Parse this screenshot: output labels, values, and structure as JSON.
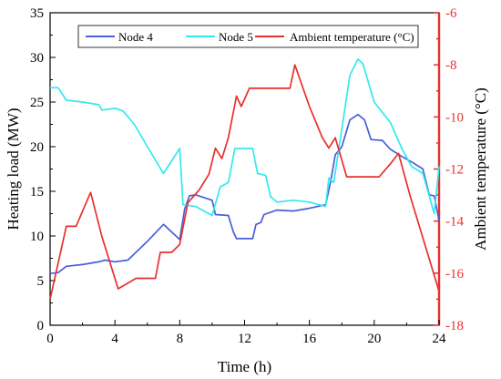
{
  "chart_data": {
    "type": "line",
    "xlabel": "Time (h)",
    "ylabel_left": "Heating load (MW)",
    "ylabel_right": "Ambient temperature (°C)",
    "xlim": [
      0,
      24
    ],
    "ylim_left": [
      0,
      35
    ],
    "ylim_right": [
      -18,
      -6
    ],
    "x_ticks": [
      0,
      4,
      8,
      12,
      16,
      20,
      24
    ],
    "y_left_ticks": [
      0,
      5,
      10,
      15,
      20,
      25,
      30,
      35
    ],
    "y_right_ticks": [
      -18,
      -16,
      -14,
      -12,
      -10,
      -8,
      -6
    ],
    "grid": false,
    "legend_position": "top",
    "colors": {
      "node4": "#4a5fd8",
      "node5": "#33e8f0",
      "ambient": "#e8302e",
      "right_axis": "#e8302e"
    },
    "series": [
      {
        "name": "Node 4",
        "axis": "left",
        "points": [
          [
            0,
            5.8
          ],
          [
            0.5,
            5.9
          ],
          [
            1,
            6.6
          ],
          [
            2,
            6.8
          ],
          [
            3,
            7.1
          ],
          [
            3.4,
            7.3
          ],
          [
            4,
            7.1
          ],
          [
            4.8,
            7.3
          ],
          [
            5.2,
            8
          ],
          [
            6,
            9.4
          ],
          [
            7,
            11.3
          ],
          [
            8,
            9.6
          ],
          [
            8.3,
            13
          ],
          [
            8.6,
            14.5
          ],
          [
            9,
            14.6
          ],
          [
            10,
            14
          ],
          [
            10.2,
            12.4
          ],
          [
            11,
            12.3
          ],
          [
            11.3,
            10.5
          ],
          [
            11.5,
            9.7
          ],
          [
            12.5,
            9.7
          ],
          [
            12.7,
            11.3
          ],
          [
            13,
            11.5
          ],
          [
            13.2,
            12.4
          ],
          [
            14,
            12.9
          ],
          [
            15,
            12.8
          ],
          [
            16,
            13.1
          ],
          [
            17,
            13.5
          ],
          [
            17.3,
            16
          ],
          [
            17.6,
            19.1
          ],
          [
            18,
            20
          ],
          [
            18.5,
            23
          ],
          [
            19,
            23.6
          ],
          [
            19.4,
            23
          ],
          [
            19.8,
            20.8
          ],
          [
            20.5,
            20.7
          ],
          [
            21,
            19.7
          ],
          [
            21.8,
            18.8
          ],
          [
            22.3,
            18.3
          ],
          [
            23,
            17.5
          ],
          [
            23.4,
            14.6
          ],
          [
            23.7,
            14.5
          ],
          [
            24,
            11.7
          ]
        ]
      },
      {
        "name": "Node 5",
        "axis": "left",
        "points": [
          [
            0,
            26.6
          ],
          [
            0.5,
            26.6
          ],
          [
            1,
            25.2
          ],
          [
            2,
            25
          ],
          [
            3,
            24.7
          ],
          [
            3.2,
            24.1
          ],
          [
            4,
            24.3
          ],
          [
            4.5,
            24
          ],
          [
            5.2,
            22.5
          ],
          [
            6,
            20
          ],
          [
            7,
            17
          ],
          [
            8,
            19.8
          ],
          [
            8.2,
            13.5
          ],
          [
            9,
            13.3
          ],
          [
            10,
            12.3
          ],
          [
            10.5,
            15.5
          ],
          [
            11,
            16
          ],
          [
            11.4,
            19.8
          ],
          [
            12.5,
            19.8
          ],
          [
            12.8,
            17
          ],
          [
            13.3,
            16.8
          ],
          [
            13.6,
            14.4
          ],
          [
            14,
            13.8
          ],
          [
            15,
            14
          ],
          [
            16,
            13.8
          ],
          [
            17,
            13.3
          ],
          [
            17.2,
            16.5
          ],
          [
            17.5,
            16
          ],
          [
            18,
            22
          ],
          [
            18.5,
            28
          ],
          [
            19,
            29.8
          ],
          [
            19.3,
            29.3
          ],
          [
            20,
            25
          ],
          [
            21,
            22.7
          ],
          [
            21.7,
            19.8
          ],
          [
            22.3,
            17.8
          ],
          [
            23,
            17
          ],
          [
            23.7,
            12.5
          ],
          [
            24,
            17.8
          ]
        ]
      },
      {
        "name": "Ambient temperature (°C)",
        "axis": "right",
        "points": [
          [
            0,
            -17
          ],
          [
            1,
            -14.2
          ],
          [
            1.6,
            -14.2
          ],
          [
            2.5,
            -12.9
          ],
          [
            3.2,
            -14.6
          ],
          [
            4.2,
            -16.6
          ],
          [
            5.3,
            -16.2
          ],
          [
            6.5,
            -16.2
          ],
          [
            6.8,
            -15.2
          ],
          [
            7.5,
            -15.2
          ],
          [
            8,
            -14.9
          ],
          [
            8.5,
            -13.3
          ],
          [
            9.2,
            -12.8
          ],
          [
            9.8,
            -12.2
          ],
          [
            10.2,
            -11.2
          ],
          [
            10.6,
            -11.6
          ],
          [
            11,
            -10.8
          ],
          [
            11.5,
            -9.2
          ],
          [
            11.8,
            -9.6
          ],
          [
            12.3,
            -8.9
          ],
          [
            14.8,
            -8.9
          ],
          [
            15.1,
            -8
          ],
          [
            16,
            -9.6
          ],
          [
            16.8,
            -10.8
          ],
          [
            17.2,
            -11.2
          ],
          [
            17.6,
            -10.8
          ],
          [
            18.3,
            -12.3
          ],
          [
            20.3,
            -12.3
          ],
          [
            21,
            -11.8
          ],
          [
            21.5,
            -11.4
          ],
          [
            22.2,
            -13
          ],
          [
            24,
            -16.7
          ]
        ]
      }
    ]
  }
}
